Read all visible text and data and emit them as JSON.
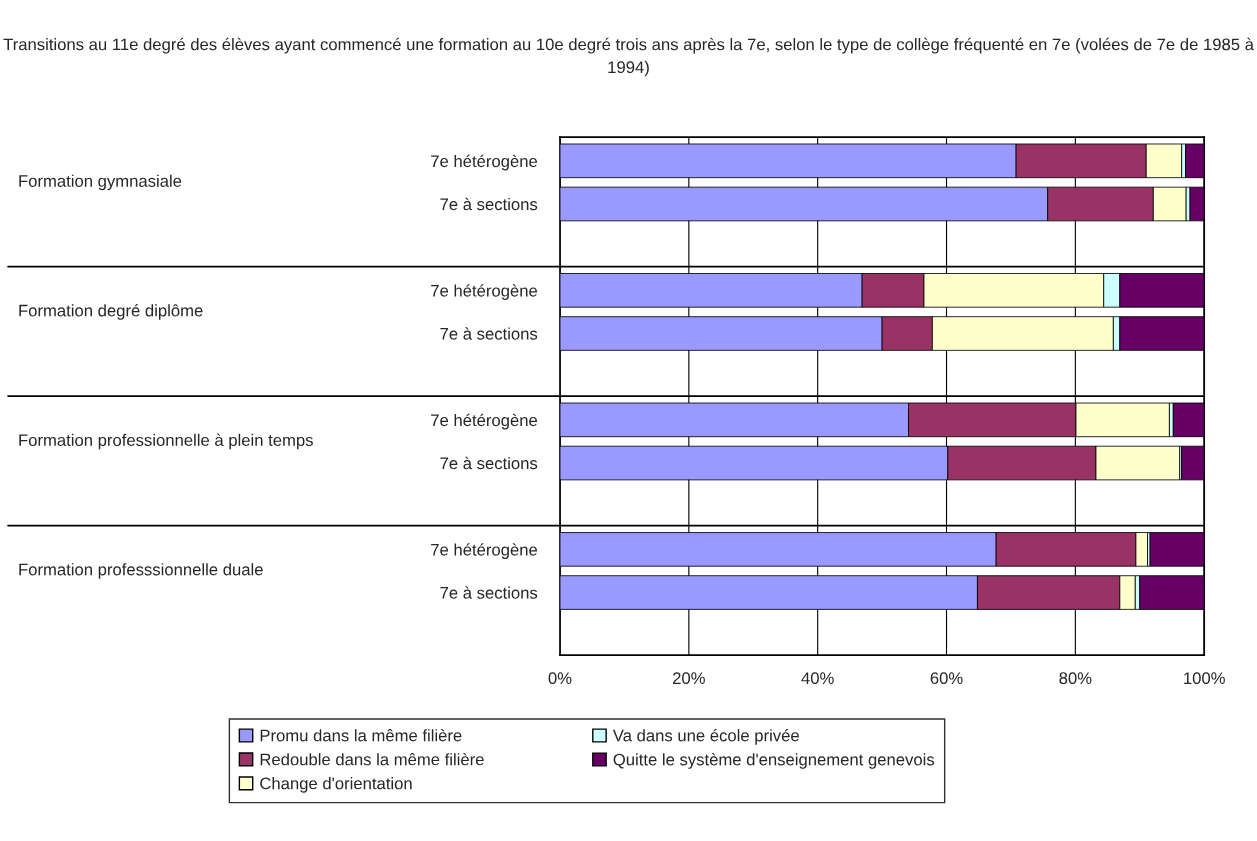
{
  "chart_data": {
    "type": "bar",
    "orientation": "horizontal",
    "stacked": true,
    "title": "Transitions au 11e degré des élèves ayant commencé une formation au 10e degré trois ans après la 7e, selon le type de collège fréquenté en 7e (volées de 7e de 1985 à 1994)",
    "categories": [
      "7e hétérogène",
      "7e à sections",
      "7e hétérogène",
      "7e à sections",
      "7e hétérogène",
      "7e à sections",
      "7e hétérogène",
      "7e à sections"
    ],
    "annotations": [
      "Formation gymnasiale",
      "Formation degré diplôme",
      "Formation professionnelle à plein temps",
      "Formation professsionnelle duale"
    ],
    "series": [
      {
        "name": "Promu dans la même filière",
        "color": "#9999ff",
        "values": [
          70.8,
          75.7,
          46.9,
          50.0,
          54.1,
          60.2,
          67.7,
          64.8
        ]
      },
      {
        "name": "Redouble dans la même filière",
        "color": "#993366",
        "values": [
          20.2,
          16.4,
          9.6,
          7.8,
          26.0,
          23.0,
          21.7,
          22.1
        ]
      },
      {
        "name": "Change d'orientation",
        "color": "#ffffcc",
        "values": [
          5.5,
          5.1,
          27.9,
          28.1,
          14.5,
          13.0,
          1.8,
          2.4
        ]
      },
      {
        "name": "Va dans une école privée",
        "color": "#ccffff",
        "values": [
          0.6,
          0.6,
          2.5,
          1.0,
          0.6,
          0.3,
          0.4,
          0.7
        ]
      },
      {
        "name": "Quitte le système d'enseignement genevois",
        "color": "#660066",
        "values": [
          2.9,
          2.2,
          13.1,
          13.1,
          4.8,
          3.5,
          8.4,
          10.0
        ]
      }
    ],
    "xlim": [
      0,
      100
    ],
    "xticks": [
      {
        "value": 0,
        "label": "0%"
      },
      {
        "value": 20,
        "label": "20%"
      },
      {
        "value": 40,
        "label": "40%"
      },
      {
        "value": 60,
        "label": "60%"
      },
      {
        "value": 80,
        "label": "80%"
      },
      {
        "value": 100,
        "label": "100%"
      }
    ],
    "grid": "x",
    "legend": "bottom"
  }
}
